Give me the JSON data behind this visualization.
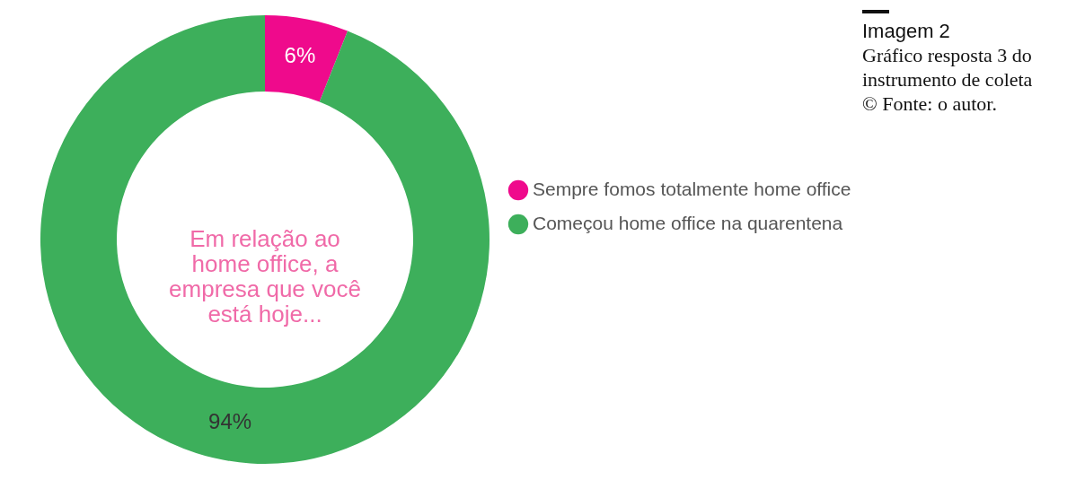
{
  "chart_data": {
    "type": "donut",
    "title": "Em relação ao home office, a empresa que você está hoje...",
    "categories": [
      "Sempre fomos totalmente home office",
      "Começou home office na quarentena"
    ],
    "values": [
      6,
      94
    ],
    "colors": [
      "#ef0a8c",
      "#3daf5b"
    ],
    "value_labels": [
      "6%",
      "94%"
    ],
    "legend": "right",
    "annotations": [
      "Imagem 2",
      "Gráfico resposta 3 do instrumento de coleta",
      "© Fonte: o autor."
    ]
  }
}
